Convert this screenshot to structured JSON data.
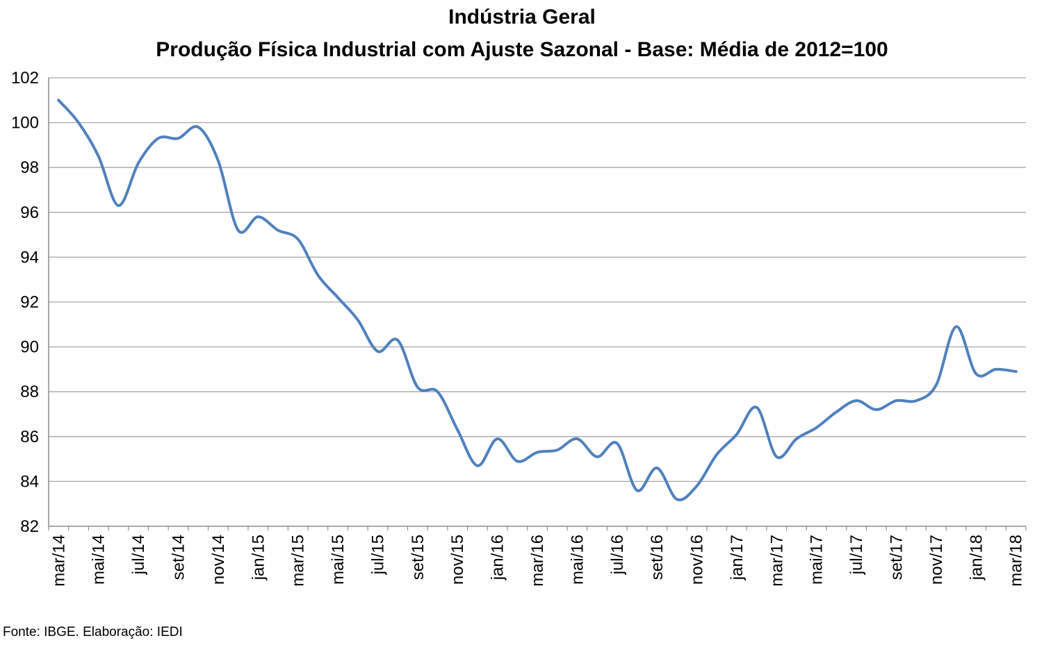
{
  "chart_data": {
    "type": "line",
    "title": "Indústria Geral",
    "subtitle": "Produção Física Industrial com Ajuste Sazonal - Base: Média de 2012=100",
    "xlabel": "",
    "ylabel": "",
    "ylim": [
      82,
      102
    ],
    "yticks": [
      "82",
      "84",
      "86",
      "88",
      "90",
      "92",
      "94",
      "96",
      "98",
      "100",
      "102"
    ],
    "grid": true,
    "line_color": "#4F81BD",
    "x": [
      "mar/14",
      "abr/14",
      "mai/14",
      "jun/14",
      "jul/14",
      "ago/14",
      "set/14",
      "out/14",
      "nov/14",
      "dez/14",
      "jan/15",
      "fev/15",
      "mar/15",
      "abr/15",
      "mai/15",
      "jun/15",
      "jul/15",
      "ago/15",
      "set/15",
      "out/15",
      "nov/15",
      "dez/15",
      "jan/16",
      "fev/16",
      "mar/16",
      "abr/16",
      "mai/16",
      "jun/16",
      "jul/16",
      "ago/16",
      "set/16",
      "out/16",
      "nov/16",
      "dez/16",
      "jan/17",
      "fev/17",
      "mar/17",
      "abr/17",
      "mai/17",
      "jun/17",
      "jul/17",
      "ago/17",
      "set/17",
      "out/17",
      "nov/17",
      "dez/17",
      "jan/18",
      "fev/18",
      "mar/18"
    ],
    "x_tick_labels": [
      "mar/14",
      "mai/14",
      "jul/14",
      "set/14",
      "nov/14",
      "jan/15",
      "mar/15",
      "mai/15",
      "jul/15",
      "set/15",
      "nov/15",
      "jan/16",
      "mar/16",
      "mai/16",
      "jul/16",
      "set/16",
      "nov/16",
      "jan/17",
      "mar/17",
      "mai/17",
      "jul/17",
      "set/17",
      "nov/17",
      "jan/18",
      "mar/18"
    ],
    "series": [
      {
        "name": "",
        "values": [
          101.0,
          100.0,
          98.5,
          96.3,
          98.2,
          99.3,
          99.3,
          99.8,
          98.3,
          95.2,
          95.8,
          95.2,
          94.8,
          93.2,
          92.2,
          91.2,
          89.8,
          90.3,
          88.2,
          88.0,
          86.3,
          84.7,
          85.9,
          84.9,
          85.3,
          85.4,
          85.9,
          85.1,
          85.7,
          83.6,
          84.6,
          83.2,
          83.8,
          85.2,
          86.1,
          87.3,
          85.1,
          85.9,
          86.4,
          87.1,
          87.6,
          87.2,
          87.6,
          87.6,
          88.3,
          90.9,
          88.8,
          89.0,
          88.9
        ]
      }
    ]
  },
  "source_note": "Fonte: IBGE. Elaboração: IEDI"
}
